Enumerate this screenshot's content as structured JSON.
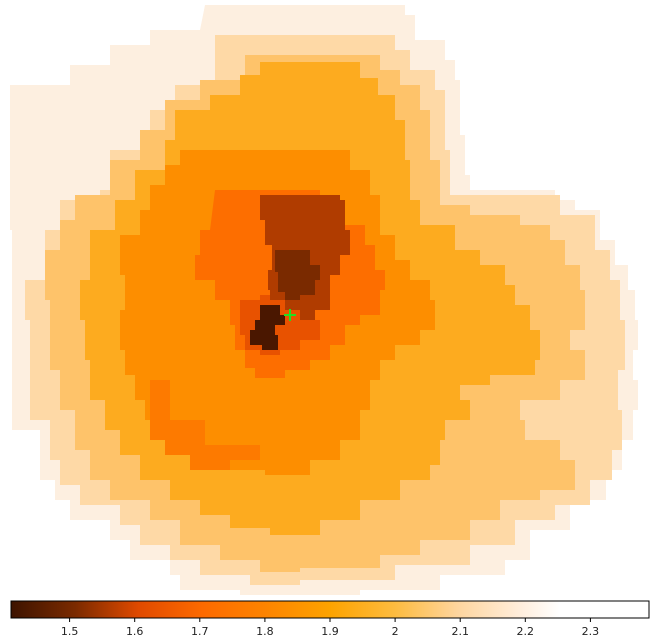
{
  "image": {
    "subject": "pseudo-color map with contour-like regions and a color scale",
    "colormap": {
      "min": 1.41,
      "max": 2.39,
      "stops": [
        {
          "v": 1.41,
          "c": "#3d1300"
        },
        {
          "v": 1.5,
          "c": "#7a2a00"
        },
        {
          "v": 1.6,
          "c": "#e04a00"
        },
        {
          "v": 1.7,
          "c": "#fd6a00"
        },
        {
          "v": 1.8,
          "c": "#fd8400"
        },
        {
          "v": 1.9,
          "c": "#fda300"
        },
        {
          "v": 2.0,
          "c": "#fdbb3e"
        },
        {
          "v": 2.1,
          "c": "#fed59e"
        },
        {
          "v": 2.2,
          "c": "#ffeedd"
        },
        {
          "v": 2.25,
          "c": "#ffffff"
        },
        {
          "v": 2.39,
          "c": "#ffffff"
        }
      ]
    },
    "marker": {
      "name": "center-marker",
      "symbol": "+",
      "color": "#22dd22"
    }
  },
  "colorbar": {
    "ticks": [
      "1.5",
      "1.6",
      "1.7",
      "1.8",
      "1.9",
      "2",
      "2.1",
      "2.2",
      "2.3"
    ],
    "tick_values": [
      1.5,
      1.6,
      1.7,
      1.8,
      1.9,
      2.0,
      2.1,
      2.2,
      2.3
    ]
  }
}
